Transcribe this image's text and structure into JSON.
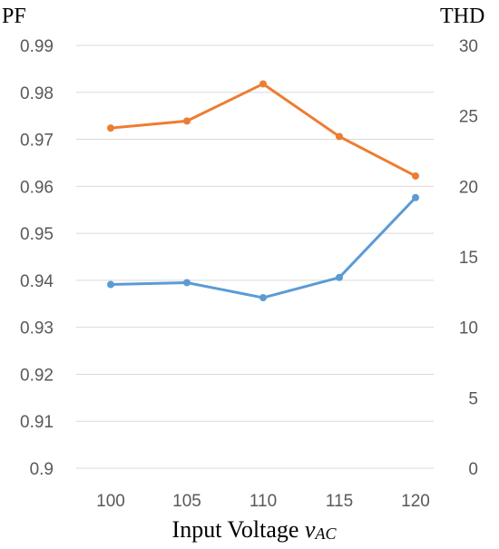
{
  "chart_data": {
    "type": "line",
    "x": [
      100,
      105,
      110,
      115,
      120
    ],
    "categories": [
      "100",
      "105",
      "110",
      "115",
      "120"
    ],
    "xlabel": {
      "main": "Input Voltage ",
      "var": "v",
      "sub": "AC"
    },
    "ylabel_left": "PF",
    "ylabel_right": "THD",
    "ylim_left": [
      0.9,
      0.99
    ],
    "ylim_right": [
      0,
      30
    ],
    "yticks_left": [
      "0.9",
      "0.91",
      "0.92",
      "0.93",
      "0.94",
      "0.95",
      "0.96",
      "0.97",
      "0.98",
      "0.99"
    ],
    "yticks_right": [
      "0",
      "5",
      "10",
      "15",
      "20",
      "25",
      "30"
    ],
    "grid": true,
    "series": [
      {
        "axis": "left",
        "values": [
          0.9391,
          0.9395,
          0.9363,
          0.9406,
          0.9576
        ],
        "color": "#5b9bd5"
      },
      {
        "axis": "left",
        "values": [
          0.9724,
          0.9739,
          0.9818,
          0.9706,
          0.9622
        ],
        "color": "#ed7d31"
      }
    ]
  }
}
